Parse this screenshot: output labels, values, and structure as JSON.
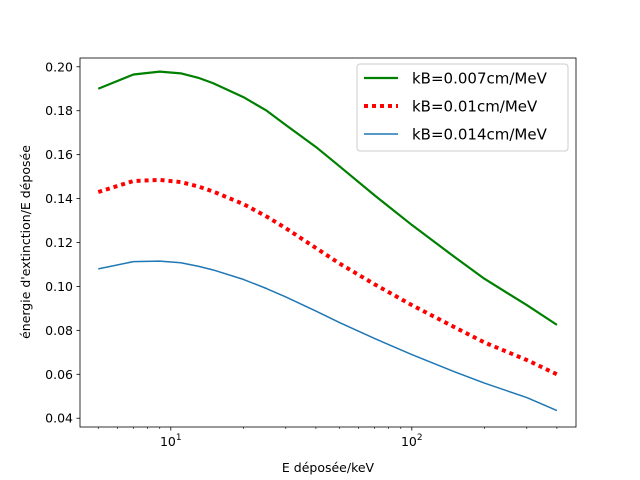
{
  "chart_data": {
    "type": "line",
    "xscale": "log",
    "xlabel": "E déposée/keV",
    "ylabel": "énergie d'extinction/E déposée",
    "xlim": [
      4.2,
      480
    ],
    "ylim": [
      0.036,
      0.204
    ],
    "x_tick_labels": [
      {
        "value": 10,
        "mantissa": "10",
        "exp": "1"
      },
      {
        "value": 100,
        "mantissa": "10",
        "exp": "2"
      }
    ],
    "y_ticks": [
      0.04,
      0.06,
      0.08,
      0.1,
      0.12,
      0.14,
      0.16,
      0.18,
      0.2
    ],
    "y_tick_labels": [
      "0.04",
      "0.06",
      "0.08",
      "0.10",
      "0.12",
      "0.14",
      "0.16",
      "0.18",
      "0.20"
    ],
    "grid": false,
    "legend": {
      "placement": "top-right"
    },
    "x": [
      5,
      7,
      9,
      11,
      13,
      15,
      20,
      25,
      30,
      40,
      50,
      70,
      100,
      150,
      200,
      300,
      400
    ],
    "series": [
      {
        "name": "kB=0.007cm/MeV",
        "color": "#008000",
        "style": "solid",
        "values": [
          0.19,
          0.1965,
          0.1978,
          0.197,
          0.195,
          0.1925,
          0.1862,
          0.18,
          0.1735,
          0.1635,
          0.1548,
          0.1415,
          0.128,
          0.1135,
          0.1035,
          0.0915,
          0.0825
        ]
      },
      {
        "name": "kB=0.01cm/MeV",
        "color": "#ff0000",
        "style": "dotted",
        "values": [
          0.143,
          0.148,
          0.1485,
          0.1475,
          0.1455,
          0.1432,
          0.1375,
          0.1318,
          0.1265,
          0.1175,
          0.1105,
          0.101,
          0.0915,
          0.0815,
          0.0745,
          0.0665,
          0.06
        ]
      },
      {
        "name": "kB=0.014cm/MeV",
        "color": "#1f77b4",
        "style": "solid",
        "values": [
          0.108,
          0.1113,
          0.1115,
          0.1108,
          0.1092,
          0.1075,
          0.1032,
          0.099,
          0.0952,
          0.0888,
          0.0836,
          0.0763,
          0.069,
          0.0612,
          0.056,
          0.0494,
          0.0435
        ]
      }
    ]
  }
}
